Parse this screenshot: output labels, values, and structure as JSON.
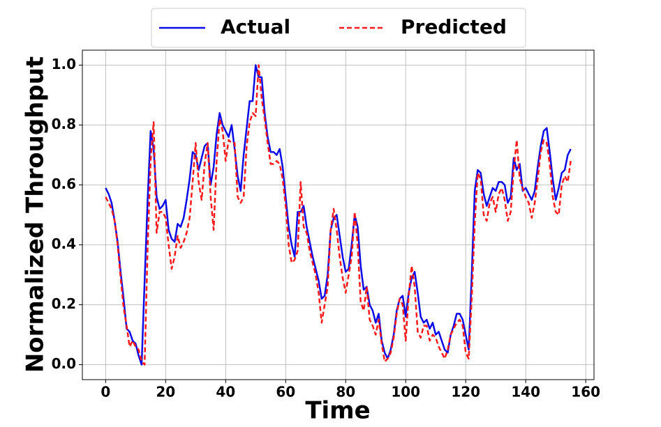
{
  "chart_data": {
    "type": "line",
    "xlabel": "Time",
    "ylabel": "Normalized Throughput",
    "x": [
      0,
      1,
      2,
      3,
      4,
      5,
      6,
      7,
      8,
      9,
      10,
      11,
      12,
      13,
      14,
      15,
      16,
      17,
      18,
      19,
      20,
      21,
      22,
      23,
      24,
      25,
      26,
      27,
      28,
      29,
      30,
      31,
      32,
      33,
      34,
      35,
      36,
      37,
      38,
      39,
      40,
      41,
      42,
      43,
      44,
      45,
      46,
      47,
      48,
      49,
      50,
      51,
      52,
      53,
      54,
      55,
      56,
      57,
      58,
      59,
      60,
      61,
      62,
      63,
      64,
      65,
      66,
      67,
      68,
      69,
      70,
      71,
      72,
      73,
      74,
      75,
      76,
      77,
      78,
      79,
      80,
      81,
      82,
      83,
      84,
      85,
      86,
      87,
      88,
      89,
      90,
      91,
      92,
      93,
      94,
      95,
      96,
      97,
      98,
      99,
      100,
      101,
      102,
      103,
      104,
      105,
      106,
      107,
      108,
      109,
      110,
      111,
      112,
      113,
      114,
      115,
      116,
      117,
      118,
      119,
      120,
      121,
      122,
      123,
      124,
      125,
      126,
      127,
      128,
      129,
      130,
      131,
      132,
      133,
      134,
      135,
      136,
      137,
      138,
      139,
      140,
      141,
      142,
      143,
      144,
      145,
      146,
      147,
      148,
      149,
      150,
      151,
      152,
      153,
      154,
      155
    ],
    "series": [
      {
        "name": "Actual",
        "color": "#0a0ae6",
        "dash": false,
        "values": [
          0.59,
          0.57,
          0.54,
          0.48,
          0.41,
          0.31,
          0.22,
          0.12,
          0.11,
          0.08,
          0.07,
          0.03,
          0.0,
          0.28,
          0.55,
          0.78,
          0.72,
          0.56,
          0.52,
          0.53,
          0.55,
          0.45,
          0.42,
          0.41,
          0.47,
          0.46,
          0.49,
          0.55,
          0.62,
          0.71,
          0.7,
          0.65,
          0.69,
          0.73,
          0.74,
          0.6,
          0.66,
          0.77,
          0.84,
          0.8,
          0.78,
          0.76,
          0.8,
          0.72,
          0.63,
          0.58,
          0.7,
          0.79,
          0.88,
          0.88,
          1.0,
          0.96,
          0.96,
          0.84,
          0.76,
          0.71,
          0.71,
          0.7,
          0.72,
          0.66,
          0.56,
          0.46,
          0.4,
          0.36,
          0.51,
          0.51,
          0.53,
          0.46,
          0.41,
          0.36,
          0.32,
          0.28,
          0.22,
          0.23,
          0.3,
          0.45,
          0.49,
          0.5,
          0.43,
          0.36,
          0.31,
          0.32,
          0.4,
          0.5,
          0.46,
          0.33,
          0.25,
          0.26,
          0.2,
          0.18,
          0.14,
          0.17,
          0.08,
          0.04,
          0.02,
          0.05,
          0.1,
          0.18,
          0.22,
          0.23,
          0.16,
          0.24,
          0.29,
          0.31,
          0.24,
          0.16,
          0.14,
          0.15,
          0.12,
          0.14,
          0.1,
          0.11,
          0.08,
          0.05,
          0.04,
          0.1,
          0.13,
          0.17,
          0.17,
          0.15,
          0.1,
          0.05,
          0.3,
          0.58,
          0.65,
          0.64,
          0.57,
          0.53,
          0.56,
          0.59,
          0.58,
          0.61,
          0.61,
          0.6,
          0.54,
          0.56,
          0.69,
          0.65,
          0.67,
          0.58,
          0.59,
          0.57,
          0.55,
          0.58,
          0.66,
          0.73,
          0.78,
          0.79,
          0.71,
          0.62,
          0.55,
          0.59,
          0.64,
          0.65,
          0.7,
          0.72
        ]
      },
      {
        "name": "Predicted",
        "color": "#ff1a1a",
        "dash": true,
        "values": [
          0.56,
          0.54,
          0.52,
          0.48,
          0.4,
          0.29,
          0.19,
          0.13,
          0.06,
          0.08,
          0.06,
          0.05,
          0.01,
          0.0,
          0.39,
          0.68,
          0.81,
          0.44,
          0.51,
          0.51,
          0.49,
          0.4,
          0.32,
          0.36,
          0.43,
          0.39,
          0.41,
          0.44,
          0.49,
          0.61,
          0.74,
          0.61,
          0.55,
          0.67,
          0.74,
          0.56,
          0.45,
          0.68,
          0.82,
          0.78,
          0.68,
          0.75,
          0.74,
          0.74,
          0.56,
          0.54,
          0.56,
          0.73,
          0.81,
          0.84,
          0.83,
          1.0,
          0.89,
          0.82,
          0.74,
          0.67,
          0.67,
          0.68,
          0.67,
          0.62,
          0.53,
          0.4,
          0.34,
          0.35,
          0.38,
          0.61,
          0.46,
          0.44,
          0.38,
          0.34,
          0.3,
          0.24,
          0.14,
          0.2,
          0.26,
          0.45,
          0.52,
          0.45,
          0.36,
          0.29,
          0.24,
          0.3,
          0.36,
          0.51,
          0.4,
          0.21,
          0.18,
          0.26,
          0.15,
          0.13,
          0.1,
          0.15,
          0.07,
          0.01,
          0.02,
          0.04,
          0.09,
          0.17,
          0.22,
          0.2,
          0.08,
          0.23,
          0.33,
          0.26,
          0.11,
          0.09,
          0.13,
          0.13,
          0.08,
          0.1,
          0.09,
          0.06,
          0.04,
          0.02,
          0.05,
          0.1,
          0.12,
          0.14,
          0.15,
          0.13,
          0.04,
          0.02,
          0.22,
          0.47,
          0.64,
          0.62,
          0.5,
          0.48,
          0.54,
          0.56,
          0.51,
          0.57,
          0.59,
          0.55,
          0.48,
          0.51,
          0.65,
          0.75,
          0.62,
          0.59,
          0.56,
          0.54,
          0.49,
          0.54,
          0.62,
          0.71,
          0.75,
          0.74,
          0.67,
          0.56,
          0.51,
          0.5,
          0.6,
          0.63,
          0.61,
          0.68
        ]
      }
    ],
    "xlim": [
      -7.75,
      162.75
    ],
    "ylim": [
      -0.05,
      1.05
    ],
    "xticks": [
      0,
      20,
      40,
      60,
      80,
      100,
      120,
      140,
      160
    ],
    "yticks": [
      {
        "value": 0,
        "label": "0.0"
      },
      0.2,
      0.4,
      0.6,
      0.8,
      {
        "value": 1,
        "label": "1.0"
      }
    ],
    "grid": true,
    "legend": "top"
  }
}
